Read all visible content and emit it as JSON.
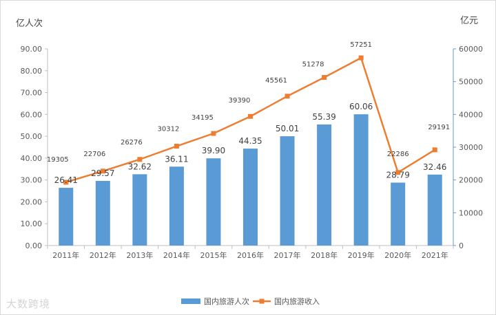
{
  "chart_data": {
    "type": "bar",
    "categories": [
      "2011年",
      "2012年",
      "2013年",
      "2014年",
      "2015年",
      "2016年",
      "2017年",
      "2018年",
      "2019年",
      "2020年",
      "2021年"
    ],
    "series": [
      {
        "name": "国内旅游人次",
        "type": "bar",
        "axis": "left",
        "color": "#5b9bd5",
        "values": [
          26.41,
          29.57,
          32.62,
          36.11,
          39.9,
          44.35,
          50.01,
          55.39,
          60.06,
          28.79,
          32.46
        ],
        "labels": [
          "26.41",
          "29.57",
          "32.62",
          "36.11",
          "39.90",
          "44.35",
          "50.01",
          "55.39",
          "60.06",
          "28.79",
          "32.46"
        ]
      },
      {
        "name": "国内旅游收入",
        "type": "line",
        "axis": "right",
        "color": "#ed7d31",
        "values": [
          19305,
          22706,
          26276,
          30312,
          34195,
          39390,
          45561,
          51278,
          57251,
          22286,
          29191
        ],
        "labels": [
          "19305",
          "22706",
          "26276",
          "30312",
          "34195",
          "39390",
          "45561",
          "51278",
          "57251",
          "22286",
          "29191"
        ]
      }
    ],
    "y_left": {
      "label": "亿人次",
      "range": [
        0,
        90
      ],
      "ticks": [
        "0.00",
        "10.00",
        "20.00",
        "30.00",
        "40.00",
        "50.00",
        "60.00",
        "70.00",
        "80.00",
        "90.00"
      ]
    },
    "y_right": {
      "label": "亿元",
      "range": [
        0,
        60000
      ],
      "ticks": [
        "0",
        "10000",
        "20000",
        "30000",
        "40000",
        "50000",
        "60000"
      ]
    },
    "legend_position": "bottom-center",
    "grid": false
  },
  "watermark": "大数跨境"
}
